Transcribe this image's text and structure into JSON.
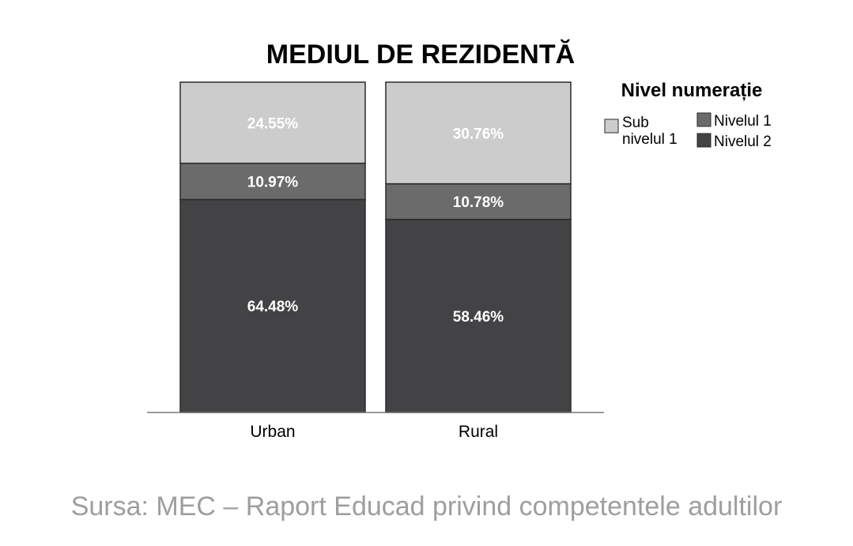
{
  "colors": {
    "sub_nivelul_1": "#cccccc",
    "nivelul_1": "#6b6b6b",
    "nivelul_2": "#434345",
    "outline": "#2a2a2a",
    "source_text": "#9e9e9e"
  },
  "source": "Sursa: MEC – Raport Educad privind competentele adultilor",
  "chart_data": {
    "type": "bar",
    "stacked": true,
    "normalized_percent": true,
    "title": "MEDIUL DE REZIDENTĂ",
    "xlabel": "",
    "ylabel": "",
    "ylim": [
      0,
      100
    ],
    "grid": false,
    "legend_position": "right",
    "legend_title": "Nivel numerație",
    "categories": [
      "Urban",
      "Rural"
    ],
    "series": [
      {
        "key": "nivelul_2",
        "name": "Nivelul 2",
        "values": [
          64.48,
          58.46
        ],
        "labels": [
          "64.48%",
          "58.46%"
        ]
      },
      {
        "key": "nivelul_1",
        "name": "Nivelul 1",
        "values": [
          10.97,
          10.78
        ],
        "labels": [
          "10.97%",
          "10.78%"
        ]
      },
      {
        "key": "sub_nivelul_1",
        "name": "Sub nivelul 1",
        "legend_lines": [
          "Sub",
          "nivelul 1"
        ],
        "values": [
          24.55,
          30.76
        ],
        "labels": [
          "24.55%",
          "30.76%"
        ]
      }
    ]
  }
}
